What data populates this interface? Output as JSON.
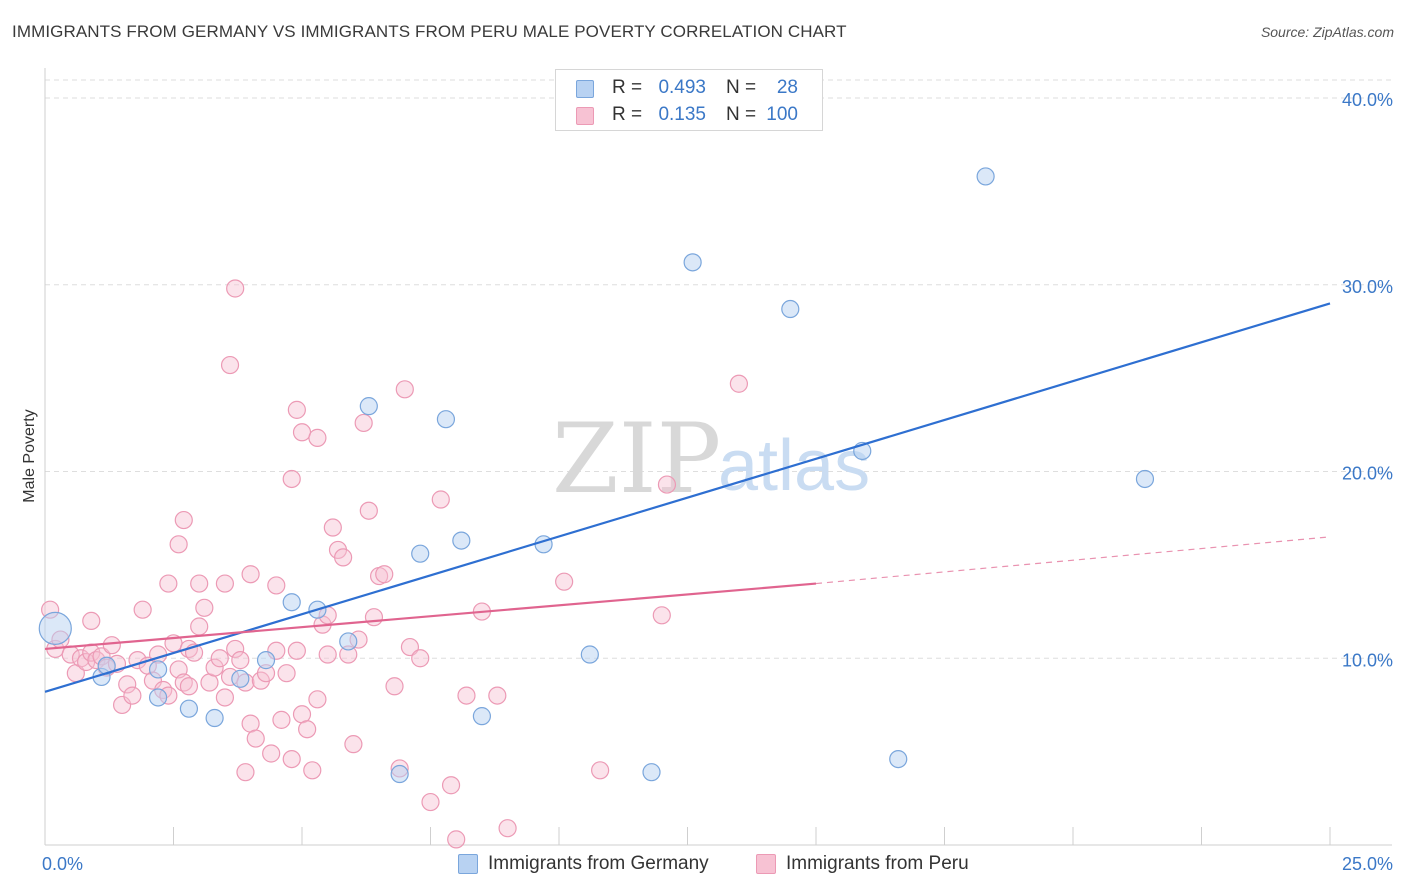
{
  "title": "IMMIGRANTS FROM GERMANY VS IMMIGRANTS FROM PERU MALE POVERTY CORRELATION CHART",
  "source": "Source: ZipAtlas.com",
  "watermark": {
    "zip": "ZIP",
    "atlas": "atlas"
  },
  "colors": {
    "germany_fill": "#b8d2f2",
    "germany_stroke": "#7aa6dc",
    "germany_line": "#2e6fd1",
    "peru_fill": "#f7c2d3",
    "peru_stroke": "#ec9ab5",
    "peru_line": "#e0648f",
    "tick_label": "#3b78c7",
    "grid": "#dedede"
  },
  "legend": {
    "germany": {
      "r_label": "R =",
      "r_value": "0.493",
      "n_label": "N =",
      "n_value": "28"
    },
    "peru": {
      "r_label": "R =",
      "r_value": "0.135",
      "n_label": "N =",
      "n_value": "100"
    }
  },
  "bottom_legend": {
    "germany": "Immigrants from Germany",
    "peru": "Immigrants from Peru"
  },
  "chart_data": {
    "type": "scatter",
    "title": "IMMIGRANTS FROM GERMANY VS IMMIGRANTS FROM PERU MALE POVERTY CORRELATION CHART",
    "xlabel": "",
    "ylabel": "Male Poverty",
    "xlim": [
      0,
      25
    ],
    "ylim": [
      0,
      40
    ],
    "x_tick_labels": [
      "0.0%",
      "25.0%"
    ],
    "y_ticks": [
      10,
      20,
      30,
      40
    ],
    "y_tick_labels": [
      "10.0%",
      "20.0%",
      "30.0%",
      "40.0%"
    ],
    "grid": true,
    "legend_position": "top-center",
    "series": [
      {
        "name": "Immigrants from Germany",
        "r": 0.493,
        "n": 28,
        "trend": {
          "x0": 0,
          "y0": 8.2,
          "x1": 25,
          "y1": 29.0
        },
        "points": [
          [
            0.2,
            11.6
          ],
          [
            1.1,
            9.0
          ],
          [
            1.2,
            9.6
          ],
          [
            2.2,
            9.4
          ],
          [
            2.2,
            7.9
          ],
          [
            2.8,
            7.3
          ],
          [
            3.3,
            6.8
          ],
          [
            3.8,
            8.9
          ],
          [
            4.3,
            9.9
          ],
          [
            4.8,
            13.0
          ],
          [
            5.3,
            12.6
          ],
          [
            5.9,
            10.9
          ],
          [
            6.3,
            23.5
          ],
          [
            6.9,
            3.8
          ],
          [
            7.3,
            15.6
          ],
          [
            7.8,
            22.8
          ],
          [
            8.1,
            16.3
          ],
          [
            8.5,
            6.9
          ],
          [
            9.7,
            16.1
          ],
          [
            10.6,
            10.2
          ],
          [
            11.8,
            3.9
          ],
          [
            12.6,
            31.2
          ],
          [
            14.5,
            28.7
          ],
          [
            15.9,
            21.1
          ],
          [
            16.6,
            4.6
          ],
          [
            18.3,
            35.8
          ],
          [
            21.4,
            19.6
          ],
          [
            10.3,
            39.3
          ]
        ]
      },
      {
        "name": "Immigrants from Peru",
        "r": 0.135,
        "n": 100,
        "trend": {
          "x0": 0,
          "y0": 10.5,
          "x1": 15.0,
          "y1": 14.0,
          "dash_x1": 25,
          "dash_y1": 16.5
        },
        "points": [
          [
            0.1,
            12.6
          ],
          [
            0.2,
            10.5
          ],
          [
            0.3,
            11.0
          ],
          [
            0.5,
            10.2
          ],
          [
            0.6,
            9.2
          ],
          [
            0.7,
            10.0
          ],
          [
            0.8,
            9.8
          ],
          [
            0.9,
            10.3
          ],
          [
            1.0,
            9.9
          ],
          [
            1.1,
            10.1
          ],
          [
            1.2,
            9.5
          ],
          [
            0.9,
            12.0
          ],
          [
            1.3,
            10.7
          ],
          [
            1.4,
            9.7
          ],
          [
            1.5,
            7.5
          ],
          [
            1.6,
            8.6
          ],
          [
            1.8,
            9.9
          ],
          [
            1.9,
            12.6
          ],
          [
            2.0,
            9.6
          ],
          [
            2.1,
            8.8
          ],
          [
            2.2,
            10.2
          ],
          [
            2.3,
            8.3
          ],
          [
            2.4,
            8.0
          ],
          [
            2.5,
            10.8
          ],
          [
            2.6,
            9.4
          ],
          [
            2.7,
            8.7
          ],
          [
            2.8,
            10.5
          ],
          [
            2.9,
            10.3
          ],
          [
            3.0,
            11.7
          ],
          [
            3.1,
            12.7
          ],
          [
            3.2,
            8.7
          ],
          [
            3.3,
            9.5
          ],
          [
            3.4,
            10.0
          ],
          [
            3.5,
            7.9
          ],
          [
            3.6,
            9.0
          ],
          [
            3.7,
            10.5
          ],
          [
            3.8,
            9.9
          ],
          [
            3.9,
            8.7
          ],
          [
            4.0,
            6.5
          ],
          [
            4.1,
            5.7
          ],
          [
            4.2,
            8.8
          ],
          [
            4.3,
            9.2
          ],
          [
            4.4,
            4.9
          ],
          [
            4.5,
            10.4
          ],
          [
            4.6,
            6.7
          ],
          [
            4.7,
            9.2
          ],
          [
            4.8,
            4.6
          ],
          [
            4.9,
            10.4
          ],
          [
            5.0,
            7.0
          ],
          [
            5.1,
            6.2
          ],
          [
            5.2,
            4.0
          ],
          [
            5.3,
            7.8
          ],
          [
            5.4,
            11.8
          ],
          [
            5.5,
            10.2
          ],
          [
            5.6,
            17.0
          ],
          [
            5.7,
            15.8
          ],
          [
            5.8,
            15.4
          ],
          [
            5.9,
            10.2
          ],
          [
            6.0,
            5.4
          ],
          [
            6.1,
            11.0
          ],
          [
            2.7,
            17.4
          ],
          [
            2.6,
            16.1
          ],
          [
            2.4,
            14.0
          ],
          [
            3.0,
            14.0
          ],
          [
            3.5,
            14.0
          ],
          [
            4.0,
            14.5
          ],
          [
            4.5,
            13.9
          ],
          [
            4.8,
            19.6
          ],
          [
            4.9,
            23.3
          ],
          [
            5.0,
            22.1
          ],
          [
            5.3,
            21.8
          ],
          [
            3.6,
            25.7
          ],
          [
            3.7,
            29.8
          ],
          [
            6.2,
            22.6
          ],
          [
            6.3,
            17.9
          ],
          [
            6.5,
            14.4
          ],
          [
            6.6,
            14.5
          ],
          [
            6.8,
            8.5
          ],
          [
            6.9,
            4.1
          ],
          [
            7.0,
            24.4
          ],
          [
            7.1,
            10.6
          ],
          [
            7.3,
            10.0
          ],
          [
            7.5,
            2.3
          ],
          [
            7.7,
            18.5
          ],
          [
            7.9,
            3.2
          ],
          [
            8.0,
            0.3
          ],
          [
            8.2,
            8.0
          ],
          [
            8.5,
            12.5
          ],
          [
            8.8,
            8.0
          ],
          [
            9.0,
            0.9
          ],
          [
            10.1,
            14.1
          ],
          [
            10.8,
            4.0
          ],
          [
            12.0,
            12.3
          ],
          [
            12.1,
            19.3
          ],
          [
            13.5,
            24.7
          ],
          [
            6.4,
            12.2
          ],
          [
            3.9,
            3.9
          ],
          [
            5.5,
            12.3
          ],
          [
            2.8,
            8.5
          ],
          [
            1.7,
            8.0
          ]
        ]
      }
    ]
  }
}
